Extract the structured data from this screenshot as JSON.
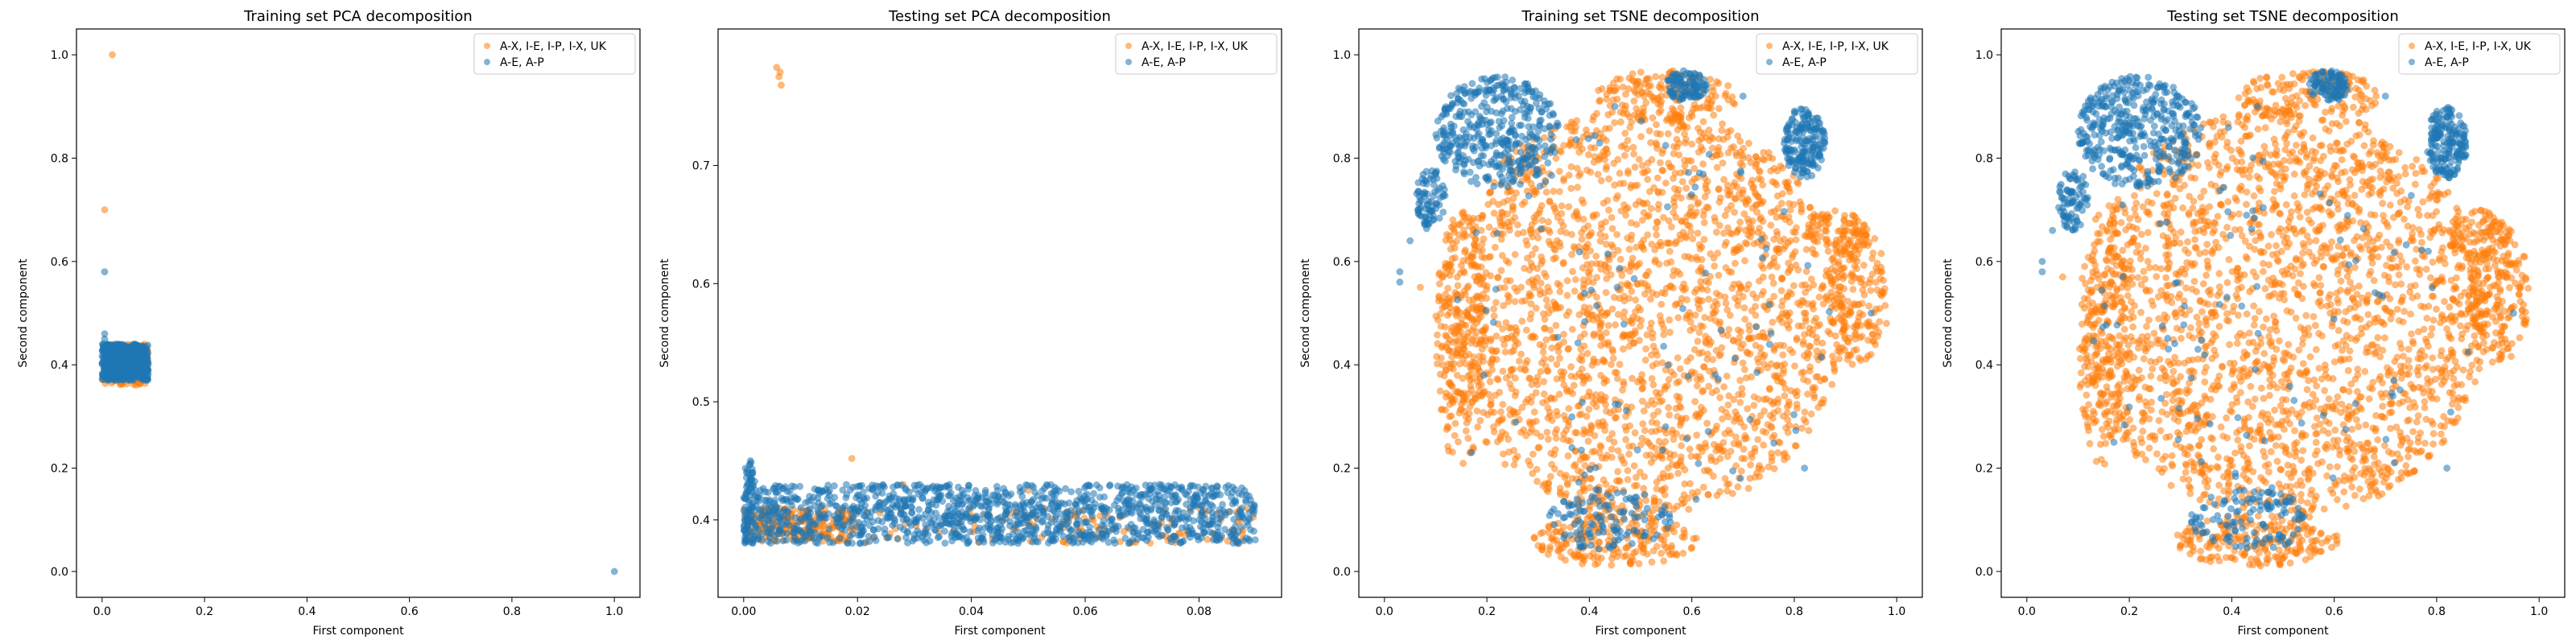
{
  "colors": {
    "series_a": "#ff7f0e",
    "series_b": "#1f77b4",
    "axes": "#000000",
    "legend_border": "#cccccc"
  },
  "chart_data": [
    {
      "type": "scatter",
      "title": "Training set PCA decomposition",
      "xlabel": "First component",
      "ylabel": "Second component",
      "xlim": [
        -0.05,
        1.05
      ],
      "ylim": [
        -0.05,
        1.05
      ],
      "xticks": [
        0.0,
        0.2,
        0.4,
        0.6,
        0.8,
        1.0
      ],
      "yticks": [
        0.0,
        0.2,
        0.4,
        0.6,
        0.8,
        1.0
      ],
      "xtick_labels": [
        "0.0",
        "0.2",
        "0.4",
        "0.6",
        "0.8",
        "1.0"
      ],
      "ytick_labels": [
        "0.0",
        "0.2",
        "0.4",
        "0.6",
        "0.8",
        "1.0"
      ],
      "legend_position": "top-right",
      "series": [
        {
          "name": "A-X, I-E, I-P, I-X, UK",
          "color": "#ff7f0e",
          "points": [
            [
              0.02,
              1.0
            ],
            [
              0.005,
              0.7
            ],
            [
              0.01,
              0.42
            ],
            [
              0.03,
              0.4
            ],
            [
              0.05,
              0.39
            ],
            [
              0.08,
              0.37
            ],
            [
              0.06,
              0.38
            ],
            [
              0.04,
              0.41
            ]
          ],
          "clusters": [
            {
              "shape": "rect",
              "x": [
                0.0,
                0.09
              ],
              "y": [
                0.36,
                0.44
              ],
              "n": 160
            }
          ]
        },
        {
          "name": "A-E, A-P",
          "color": "#1f77b4",
          "points": [
            [
              0.005,
              0.58
            ],
            [
              1.0,
              0.0
            ],
            [
              0.005,
              0.46
            ],
            [
              0.005,
              0.45
            ],
            [
              0.01,
              0.44
            ],
            [
              0.09,
              0.4
            ]
          ],
          "clusters": [
            {
              "shape": "rect",
              "x": [
                0.0,
                0.09
              ],
              "y": [
                0.37,
                0.44
              ],
              "n": 600
            }
          ]
        }
      ]
    },
    {
      "type": "scatter",
      "title": "Testing set PCA decomposition",
      "xlabel": "First component",
      "ylabel": "Second component",
      "xlim": [
        -0.0045,
        0.0945
      ],
      "ylim": [
        0.3345,
        0.8155
      ],
      "xticks": [
        0.0,
        0.02,
        0.04,
        0.06,
        0.08
      ],
      "yticks": [
        0.4,
        0.5,
        0.6,
        0.7
      ],
      "xtick_labels": [
        "0.00",
        "0.02",
        "0.04",
        "0.06",
        "0.08"
      ],
      "ytick_labels": [
        "0.4",
        "0.5",
        "0.6",
        "0.7"
      ],
      "legend_position": "top-right",
      "series": [
        {
          "name": "A-X, I-E, I-P, I-X, UK",
          "color": "#ff7f0e",
          "points": [
            [
              0.0058,
              0.783
            ],
            [
              0.0062,
              0.775
            ],
            [
              0.0066,
              0.768
            ],
            [
              0.0064,
              0.779
            ],
            [
              0.019,
              0.452
            ],
            [
              0.028,
              0.43
            ],
            [
              0.05,
              0.425
            ],
            [
              0.081,
              0.405
            ]
          ],
          "clusters": [
            {
              "shape": "band",
              "x": [
                0.0,
                0.02
              ],
              "y": [
                0.382,
                0.41
              ],
              "n": 220
            },
            {
              "shape": "band",
              "x": [
                0.02,
                0.09
              ],
              "y": [
                0.38,
                0.41
              ],
              "n": 120
            }
          ]
        },
        {
          "name": "A-E, A-P",
          "color": "#1f77b4",
          "points": [
            [
              0.0012,
              0.45
            ],
            [
              0.0015,
              0.44
            ],
            [
              0.001,
              0.43
            ],
            [
              0.002,
              0.42
            ],
            [
              0.0015,
              0.41
            ],
            [
              0.001,
              0.4
            ]
          ],
          "clusters": [
            {
              "shape": "band",
              "x": [
                0.0,
                0.09
              ],
              "y": [
                0.38,
                0.43
              ],
              "n": 1300
            },
            {
              "shape": "band",
              "x": [
                0.0,
                0.002
              ],
              "y": [
                0.38,
                0.45
              ],
              "n": 60
            }
          ]
        }
      ]
    },
    {
      "type": "scatter",
      "title": "Training set TSNE decomposition",
      "xlabel": "First component",
      "ylabel": "Second component",
      "xlim": [
        -0.05,
        1.05
      ],
      "ylim": [
        -0.05,
        1.05
      ],
      "xticks": [
        0.0,
        0.2,
        0.4,
        0.6,
        0.8,
        1.0
      ],
      "yticks": [
        0.0,
        0.2,
        0.4,
        0.6,
        0.8,
        1.0
      ],
      "xtick_labels": [
        "0.0",
        "0.2",
        "0.4",
        "0.6",
        "0.8",
        "1.0"
      ],
      "ytick_labels": [
        "0.0",
        "0.2",
        "0.4",
        "0.6",
        "0.8",
        "1.0"
      ],
      "legend_position": "top-right",
      "series": [
        {
          "name": "A-X, I-E, I-P, I-X, UK",
          "color": "#ff7f0e",
          "points": [
            [
              0.07,
              0.55
            ],
            [
              0.98,
              0.48
            ],
            [
              0.3,
              0.05
            ]
          ],
          "clusters": [
            {
              "shape": "ellipse",
              "cx": 0.5,
              "cy": 0.5,
              "rx": 0.4,
              "ry": 0.4,
              "n": 2200
            },
            {
              "shape": "ellipse",
              "cx": 0.92,
              "cy": 0.54,
              "rx": 0.06,
              "ry": 0.14,
              "n": 200
            },
            {
              "shape": "ellipse",
              "cx": 0.45,
              "cy": 0.06,
              "rx": 0.16,
              "ry": 0.05,
              "n": 200
            },
            {
              "shape": "ellipse",
              "cx": 0.15,
              "cy": 0.45,
              "rx": 0.05,
              "ry": 0.25,
              "n": 200
            },
            {
              "shape": "ellipse",
              "cx": 0.55,
              "cy": 0.92,
              "rx": 0.14,
              "ry": 0.05,
              "n": 150
            },
            {
              "shape": "ellipse",
              "cx": 0.88,
              "cy": 0.65,
              "rx": 0.06,
              "ry": 0.05,
              "n": 80
            }
          ]
        },
        {
          "name": "A-E, A-P",
          "color": "#1f77b4",
          "points": [
            [
              0.05,
              0.64
            ],
            [
              0.03,
              0.58
            ],
            [
              0.03,
              0.56
            ],
            [
              0.95,
              0.5
            ],
            [
              0.17,
              0.23
            ],
            [
              0.82,
              0.2
            ],
            [
              0.7,
              0.92
            ],
            [
              0.45,
              0.9
            ]
          ],
          "clusters": [
            {
              "shape": "ellipse",
              "cx": 0.22,
              "cy": 0.85,
              "rx": 0.12,
              "ry": 0.11,
              "n": 400
            },
            {
              "shape": "ellipse",
              "cx": 0.09,
              "cy": 0.72,
              "rx": 0.03,
              "ry": 0.06,
              "n": 80
            },
            {
              "shape": "ellipse",
              "cx": 0.82,
              "cy": 0.83,
              "rx": 0.04,
              "ry": 0.07,
              "n": 180
            },
            {
              "shape": "ellipse",
              "cx": 0.59,
              "cy": 0.94,
              "rx": 0.04,
              "ry": 0.03,
              "n": 100
            },
            {
              "shape": "ellipse",
              "cx": 0.44,
              "cy": 0.1,
              "rx": 0.12,
              "ry": 0.06,
              "n": 120
            },
            {
              "shape": "ellipse",
              "cx": 0.5,
              "cy": 0.5,
              "rx": 0.38,
              "ry": 0.38,
              "n": 90
            }
          ]
        }
      ]
    },
    {
      "type": "scatter",
      "title": "Testing set TSNE decomposition",
      "xlabel": "First component",
      "ylabel": "Second component",
      "xlim": [
        -0.05,
        1.05
      ],
      "ylim": [
        -0.05,
        1.05
      ],
      "xticks": [
        0.0,
        0.2,
        0.4,
        0.6,
        0.8,
        1.0
      ],
      "yticks": [
        0.0,
        0.2,
        0.4,
        0.6,
        0.8,
        1.0
      ],
      "xtick_labels": [
        "0.0",
        "0.2",
        "0.4",
        "0.6",
        "0.8",
        "1.0"
      ],
      "ytick_labels": [
        "0.0",
        "0.2",
        "0.4",
        "0.6",
        "0.8",
        "1.0"
      ],
      "legend_position": "top-right",
      "series": [
        {
          "name": "A-X, I-E, I-P, I-X, UK",
          "color": "#ff7f0e",
          "points": [
            [
              0.07,
              0.57
            ],
            [
              0.97,
              0.48
            ],
            [
              0.3,
              0.05
            ]
          ],
          "clusters": [
            {
              "shape": "ellipse",
              "cx": 0.5,
              "cy": 0.5,
              "rx": 0.4,
              "ry": 0.4,
              "n": 2200
            },
            {
              "shape": "ellipse",
              "cx": 0.92,
              "cy": 0.54,
              "rx": 0.06,
              "ry": 0.14,
              "n": 200
            },
            {
              "shape": "ellipse",
              "cx": 0.45,
              "cy": 0.06,
              "rx": 0.16,
              "ry": 0.05,
              "n": 200
            },
            {
              "shape": "ellipse",
              "cx": 0.15,
              "cy": 0.45,
              "rx": 0.05,
              "ry": 0.25,
              "n": 200
            },
            {
              "shape": "ellipse",
              "cx": 0.55,
              "cy": 0.92,
              "rx": 0.14,
              "ry": 0.05,
              "n": 150
            },
            {
              "shape": "ellipse",
              "cx": 0.88,
              "cy": 0.65,
              "rx": 0.06,
              "ry": 0.05,
              "n": 80
            }
          ]
        },
        {
          "name": "A-E, A-P",
          "color": "#1f77b4",
          "points": [
            [
              0.05,
              0.66
            ],
            [
              0.03,
              0.6
            ],
            [
              0.03,
              0.58
            ],
            [
              0.95,
              0.5
            ],
            [
              0.17,
              0.25
            ],
            [
              0.82,
              0.2
            ],
            [
              0.7,
              0.92
            ],
            [
              0.45,
              0.9
            ]
          ],
          "clusters": [
            {
              "shape": "ellipse",
              "cx": 0.22,
              "cy": 0.85,
              "rx": 0.12,
              "ry": 0.11,
              "n": 400
            },
            {
              "shape": "ellipse",
              "cx": 0.09,
              "cy": 0.72,
              "rx": 0.03,
              "ry": 0.06,
              "n": 80
            },
            {
              "shape": "ellipse",
              "cx": 0.82,
              "cy": 0.83,
              "rx": 0.04,
              "ry": 0.07,
              "n": 180
            },
            {
              "shape": "ellipse",
              "cx": 0.59,
              "cy": 0.94,
              "rx": 0.04,
              "ry": 0.03,
              "n": 100
            },
            {
              "shape": "ellipse",
              "cx": 0.44,
              "cy": 0.1,
              "rx": 0.12,
              "ry": 0.06,
              "n": 120
            },
            {
              "shape": "ellipse",
              "cx": 0.5,
              "cy": 0.5,
              "rx": 0.38,
              "ry": 0.38,
              "n": 90
            }
          ]
        }
      ]
    }
  ]
}
